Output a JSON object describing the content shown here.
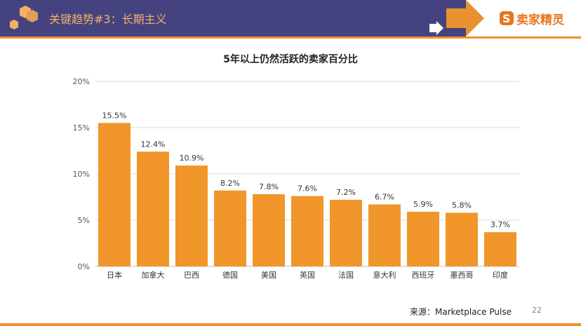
{
  "header": {
    "title": "关键趋势#3：长期主义",
    "logo_text": "卖家精灵",
    "logo_icon": "s-logo-icon"
  },
  "footer": {
    "source": "来源：Marketplace Pulse",
    "page_number": "22"
  },
  "colors": {
    "header_bg": "#45437f",
    "accent": "#f0902a",
    "bar": "#f0962a"
  },
  "chart_data": {
    "type": "bar",
    "title": "5年以上仍然活跃的卖家百分比",
    "categories": [
      "日本",
      "加拿大",
      "巴西",
      "德国",
      "美国",
      "英国",
      "法国",
      "意大利",
      "西班牙",
      "墨西哥",
      "印度"
    ],
    "values": [
      15.5,
      12.4,
      10.9,
      8.2,
      7.8,
      7.6,
      7.2,
      6.7,
      5.9,
      5.8,
      3.7
    ],
    "data_labels": [
      "15.5%",
      "12.4%",
      "10.9%",
      "8.2%",
      "7.8%",
      "7.6%",
      "7.2%",
      "6.7%",
      "5.9%",
      "5.8%",
      "3.7%"
    ],
    "yticks": [
      "0%",
      "5%",
      "10%",
      "15%",
      "20%"
    ],
    "ylim": [
      0,
      20
    ],
    "grid": true,
    "xlabel": "",
    "ylabel": ""
  }
}
